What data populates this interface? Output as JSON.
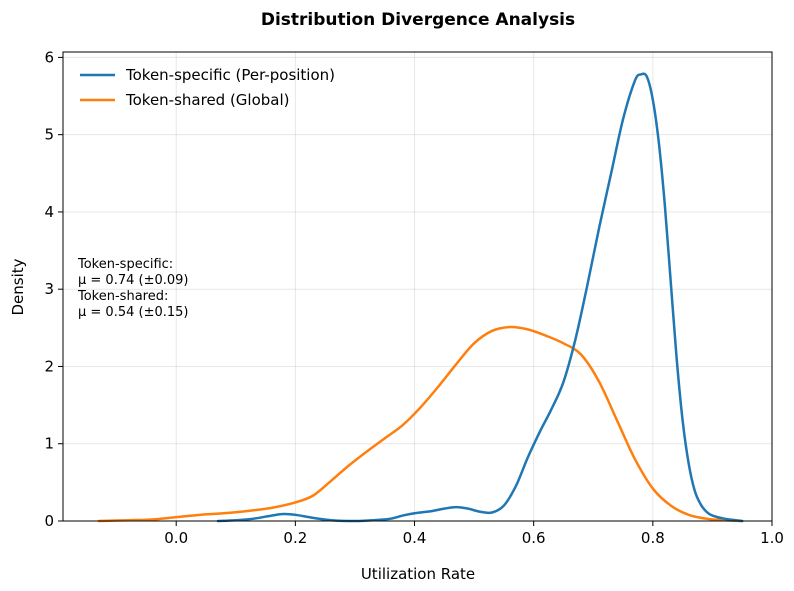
{
  "chart_data": {
    "type": "line",
    "title": "Distribution Divergence Analysis",
    "xlabel": "Utilization Rate",
    "ylabel": "Density",
    "xlim": [
      -0.19,
      1.0
    ],
    "ylim": [
      0,
      6.07
    ],
    "xticks": [
      0.0,
      0.2,
      0.4,
      0.6,
      0.8,
      1.0
    ],
    "xtick_labels": [
      "0.0",
      "0.2",
      "0.4",
      "0.6",
      "0.8",
      "1.0"
    ],
    "yticks": [
      0,
      1,
      2,
      3,
      4,
      5,
      6
    ],
    "ytick_labels": [
      "0",
      "1",
      "2",
      "3",
      "4",
      "5",
      "6"
    ],
    "grid": true,
    "legend_position": "top-left",
    "series": [
      {
        "name": "Token-specific (Per-position)",
        "color": "#1f77b4",
        "points": [
          [
            0.07,
            0.0
          ],
          [
            0.1,
            0.01
          ],
          [
            0.13,
            0.03
          ],
          [
            0.16,
            0.07
          ],
          [
            0.18,
            0.09
          ],
          [
            0.2,
            0.08
          ],
          [
            0.23,
            0.04
          ],
          [
            0.26,
            0.01
          ],
          [
            0.3,
            0.0
          ],
          [
            0.33,
            0.01
          ],
          [
            0.36,
            0.03
          ],
          [
            0.38,
            0.07
          ],
          [
            0.4,
            0.1
          ],
          [
            0.43,
            0.13
          ],
          [
            0.45,
            0.16
          ],
          [
            0.47,
            0.18
          ],
          [
            0.49,
            0.16
          ],
          [
            0.51,
            0.12
          ],
          [
            0.53,
            0.11
          ],
          [
            0.55,
            0.2
          ],
          [
            0.57,
            0.45
          ],
          [
            0.59,
            0.82
          ],
          [
            0.61,
            1.15
          ],
          [
            0.63,
            1.45
          ],
          [
            0.65,
            1.8
          ],
          [
            0.67,
            2.35
          ],
          [
            0.69,
            3.05
          ],
          [
            0.71,
            3.8
          ],
          [
            0.73,
            4.5
          ],
          [
            0.75,
            5.2
          ],
          [
            0.77,
            5.7
          ],
          [
            0.78,
            5.78
          ],
          [
            0.79,
            5.75
          ],
          [
            0.8,
            5.45
          ],
          [
            0.81,
            4.9
          ],
          [
            0.82,
            4.1
          ],
          [
            0.83,
            3.1
          ],
          [
            0.84,
            2.1
          ],
          [
            0.85,
            1.3
          ],
          [
            0.86,
            0.75
          ],
          [
            0.87,
            0.4
          ],
          [
            0.88,
            0.22
          ],
          [
            0.89,
            0.12
          ],
          [
            0.9,
            0.07
          ],
          [
            0.92,
            0.03
          ],
          [
            0.94,
            0.01
          ],
          [
            0.95,
            0.0
          ]
        ]
      },
      {
        "name": "Token-shared (Global)",
        "color": "#ff7f0e",
        "points": [
          [
            -0.13,
            0.0
          ],
          [
            -0.08,
            0.01
          ],
          [
            -0.04,
            0.02
          ],
          [
            0.0,
            0.05
          ],
          [
            0.04,
            0.08
          ],
          [
            0.08,
            0.1
          ],
          [
            0.12,
            0.13
          ],
          [
            0.16,
            0.17
          ],
          [
            0.2,
            0.24
          ],
          [
            0.23,
            0.33
          ],
          [
            0.26,
            0.52
          ],
          [
            0.29,
            0.72
          ],
          [
            0.32,
            0.9
          ],
          [
            0.35,
            1.07
          ],
          [
            0.38,
            1.24
          ],
          [
            0.41,
            1.47
          ],
          [
            0.44,
            1.74
          ],
          [
            0.47,
            2.03
          ],
          [
            0.5,
            2.3
          ],
          [
            0.53,
            2.46
          ],
          [
            0.56,
            2.51
          ],
          [
            0.59,
            2.48
          ],
          [
            0.62,
            2.4
          ],
          [
            0.65,
            2.3
          ],
          [
            0.68,
            2.15
          ],
          [
            0.71,
            1.8
          ],
          [
            0.74,
            1.3
          ],
          [
            0.77,
            0.8
          ],
          [
            0.8,
            0.42
          ],
          [
            0.83,
            0.2
          ],
          [
            0.86,
            0.08
          ],
          [
            0.89,
            0.03
          ],
          [
            0.92,
            0.01
          ],
          [
            0.95,
            0.0
          ]
        ]
      }
    ],
    "annotation": [
      "Token-specific:",
      "μ = 0.74 (±0.09)",
      "Token-shared:",
      "μ = 0.54 (±0.15)"
    ]
  }
}
